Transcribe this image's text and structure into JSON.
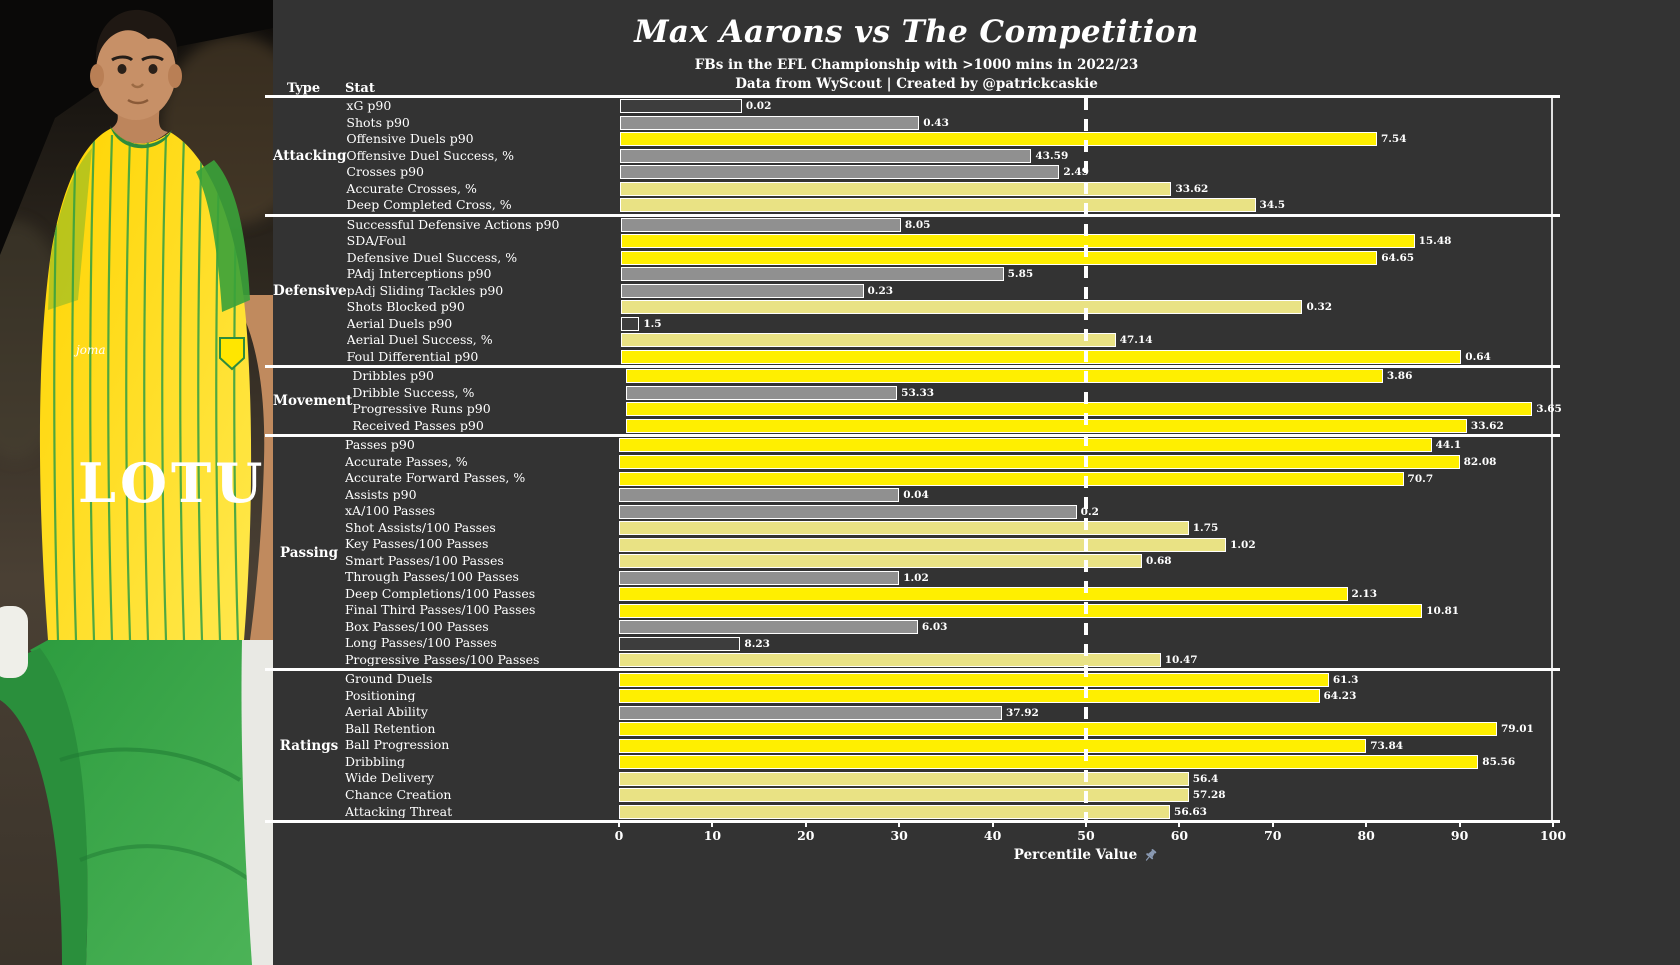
{
  "photo": {
    "sponsor_text": "LOTU",
    "description": "Max Aarons wearing yellow Norwich City shirt with green pinstripes and green shorts"
  },
  "header": {
    "title": "Max Aarons vs The Competition",
    "subtitle1": "FBs in the EFL Championship with >1000 mins in 2022/23",
    "subtitle2": "Data from WyScout | Created by @patrickcaskie"
  },
  "table": {
    "type_header": "Type",
    "stat_header": "Stat"
  },
  "axis": {
    "label": "Percentile Value",
    "ticks": [
      "0",
      "10",
      "20",
      "30",
      "40",
      "50",
      "60",
      "70",
      "80",
      "90",
      "100"
    ],
    "min": 0,
    "max": 100,
    "reference_line": 50
  },
  "colors": {
    "background": "#333333",
    "bar_yellow": "#ffef00",
    "bar_pale": "#e9e284",
    "bar_gray": "#909090",
    "bar_dark": "#3d3d3d",
    "text": "#ffffff",
    "pin_icon": "#8b9bb4",
    "shirt_yellow": "#ffdf1b",
    "kit_green": "#3aa23a"
  },
  "chart_data": {
    "type": "bar",
    "orientation": "horizontal",
    "title": "Max Aarons vs The Competition",
    "subtitle": "FBs in the EFL Championship with >1000 mins in 2022/23",
    "xlabel": "Percentile Value",
    "xlim": [
      0,
      100
    ],
    "reference_line": 50,
    "grid": false,
    "bar_label_meaning": "raw stat value; bar length = percentile vs peers",
    "tiers": {
      "dark_below": 20,
      "gray_below": 50,
      "pale_below": 75
    },
    "sections": [
      {
        "type": "Attacking",
        "rows": [
          {
            "stat": "xG p90",
            "value": "0.02",
            "percentile": 13
          },
          {
            "stat": "Shots p90",
            "value": "0.43",
            "percentile": 32
          },
          {
            "stat": "Offensive Duels p90",
            "value": "7.54",
            "percentile": 81
          },
          {
            "stat": "Offensive Duel Success, %",
            "value": "43.59",
            "percentile": 44
          },
          {
            "stat": "Crosses p90",
            "value": "2.49",
            "percentile": 47
          },
          {
            "stat": "Accurate Crosses, %",
            "value": "33.62",
            "percentile": 59
          },
          {
            "stat": "Deep Completed Cross, %",
            "value": "34.5",
            "percentile": 68
          }
        ]
      },
      {
        "type": "Defensive",
        "rows": [
          {
            "stat": "Successful Defensive Actions p90",
            "value": "8.05",
            "percentile": 30
          },
          {
            "stat": "SDA/Foul",
            "value": "15.48",
            "percentile": 85
          },
          {
            "stat": "Defensive Duel Success, %",
            "value": "64.65",
            "percentile": 81
          },
          {
            "stat": "PAdj Interceptions p90",
            "value": "5.85",
            "percentile": 41
          },
          {
            "stat": "pAdj Sliding Tackles p90",
            "value": "0.23",
            "percentile": 26
          },
          {
            "stat": "Shots Blocked p90",
            "value": "0.32",
            "percentile": 73
          },
          {
            "stat": "Aerial Duels p90",
            "value": "1.5",
            "percentile": 2
          },
          {
            "stat": "Aerial Duel Success, %",
            "value": "47.14",
            "percentile": 53
          },
          {
            "stat": "Foul Differential p90",
            "value": "0.64",
            "percentile": 90
          }
        ]
      },
      {
        "type": "Movement",
        "rows": [
          {
            "stat": "Dribbles p90",
            "value": "3.86",
            "percentile": 81
          },
          {
            "stat": "Dribble Success, %",
            "value": "53.33",
            "percentile": 29
          },
          {
            "stat": "Progressive Runs p90",
            "value": "3.65",
            "percentile": 97
          },
          {
            "stat": "Received Passes p90",
            "value": "33.62",
            "percentile": 90
          }
        ]
      },
      {
        "type": "Passing",
        "rows": [
          {
            "stat": "Passes p90",
            "value": "44.1",
            "percentile": 87
          },
          {
            "stat": "Accurate Passes, %",
            "value": "82.08",
            "percentile": 90
          },
          {
            "stat": "Accurate Forward Passes, %",
            "value": "70.7",
            "percentile": 84
          },
          {
            "stat": "Assists p90",
            "value": "0.04",
            "percentile": 30
          },
          {
            "stat": "xA/100 Passes",
            "value": "0.2",
            "percentile": 49
          },
          {
            "stat": "Shot Assists/100 Passes",
            "value": "1.75",
            "percentile": 61
          },
          {
            "stat": "Key Passes/100 Passes",
            "value": "1.02",
            "percentile": 65
          },
          {
            "stat": "Smart Passes/100 Passes",
            "value": "0.68",
            "percentile": 56
          },
          {
            "stat": "Through Passes/100 Passes",
            "value": "1.02",
            "percentile": 30
          },
          {
            "stat": "Deep Completions/100 Passes",
            "value": "2.13",
            "percentile": 78
          },
          {
            "stat": "Final Third Passes/100 Passes",
            "value": "10.81",
            "percentile": 86
          },
          {
            "stat": "Box Passes/100 Passes",
            "value": "6.03",
            "percentile": 32
          },
          {
            "stat": "Long Passes/100 Passes",
            "value": "8.23",
            "percentile": 13
          },
          {
            "stat": "Progressive Passes/100 Passes",
            "value": "10.47",
            "percentile": 58
          }
        ]
      },
      {
        "type": "Ratings",
        "rows": [
          {
            "stat": "Ground Duels",
            "value": "61.3",
            "percentile": 76
          },
          {
            "stat": "Positioning",
            "value": "64.23",
            "percentile": 75
          },
          {
            "stat": "Aerial Ability",
            "value": "37.92",
            "percentile": 41
          },
          {
            "stat": "Ball Retention",
            "value": "79.01",
            "percentile": 94
          },
          {
            "stat": "Ball Progression",
            "value": "73.84",
            "percentile": 80
          },
          {
            "stat": "Dribbling",
            "value": "85.56",
            "percentile": 92
          },
          {
            "stat": "Wide Delivery",
            "value": "56.4",
            "percentile": 61
          },
          {
            "stat": "Chance Creation",
            "value": "57.28",
            "percentile": 61
          },
          {
            "stat": "Attacking Threat",
            "value": "56.63",
            "percentile": 59
          }
        ]
      }
    ]
  }
}
